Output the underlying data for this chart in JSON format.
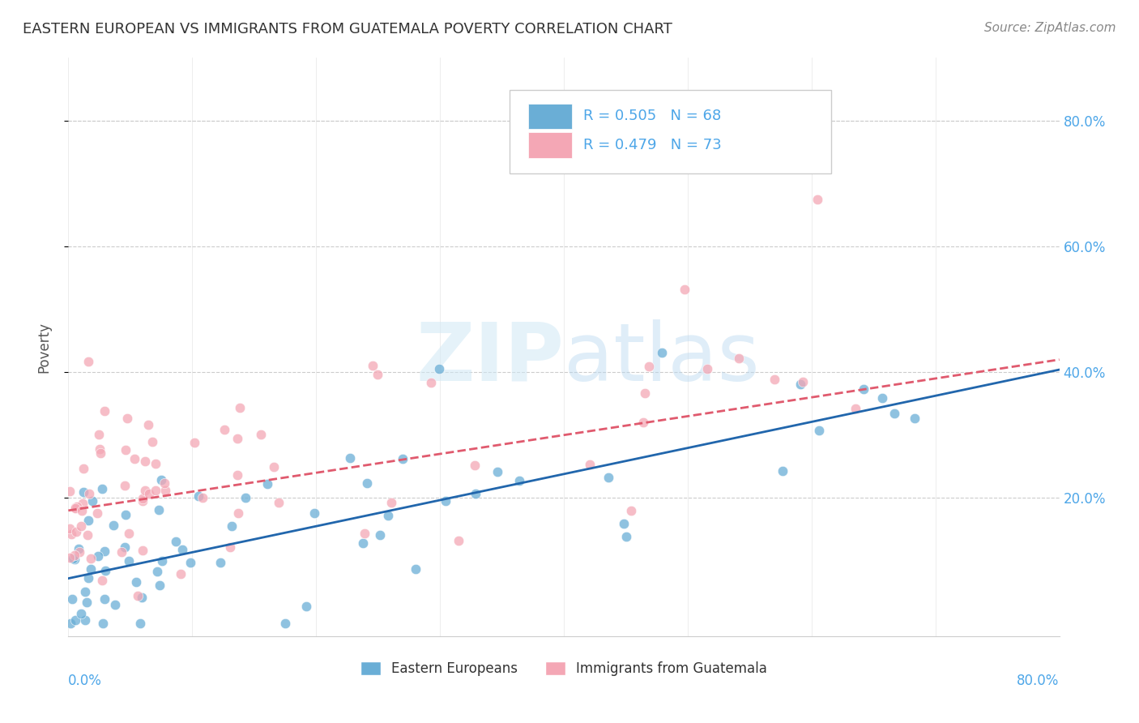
{
  "title": "EASTERN EUROPEAN VS IMMIGRANTS FROM GUATEMALA POVERTY CORRELATION CHART",
  "source": "Source: ZipAtlas.com",
  "ylabel": "Poverty",
  "ytick_labels": [
    "20.0%",
    "40.0%",
    "60.0%",
    "80.0%"
  ],
  "ytick_values": [
    0.2,
    0.4,
    0.6,
    0.8
  ],
  "xlim": [
    0.0,
    0.8
  ],
  "ylim": [
    -0.02,
    0.9
  ],
  "color_blue": "#6aaed6",
  "color_pink": "#f4a7b5",
  "color_line_blue": "#2166ac",
  "color_line_pink": "#e05a6e",
  "blue_R": 0.505,
  "blue_N": 68,
  "pink_R": 0.479,
  "pink_N": 73,
  "blue_intercept": 0.072,
  "blue_slope": 0.415,
  "pink_intercept": 0.18,
  "pink_slope": 0.3
}
